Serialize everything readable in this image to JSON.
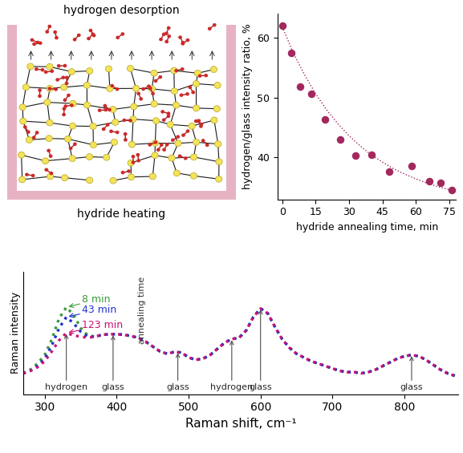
{
  "diagram": {
    "title": "hydrogen desorption",
    "caption": "hydride heating"
  },
  "chart_data": [
    {
      "type": "line",
      "xlabel": "Raman shift, cm⁻¹",
      "ylabel": "Raman intensity",
      "x": [
        270,
        280,
        290,
        300,
        310,
        320,
        330,
        340,
        350,
        360,
        370,
        380,
        390,
        400,
        410,
        420,
        430,
        440,
        450,
        460,
        470,
        480,
        490,
        500,
        510,
        520,
        530,
        540,
        550,
        560,
        570,
        580,
        590,
        600,
        610,
        620,
        630,
        640,
        650,
        660,
        670,
        680,
        690,
        700,
        710,
        720,
        730,
        740,
        750,
        760,
        770,
        780,
        790,
        800,
        810,
        820,
        830,
        840,
        850,
        860,
        870
      ],
      "series": [
        {
          "name": "8 min",
          "color": "#3a9b3a",
          "line_style": "dotted",
          "values": [
            0.07,
            0.1,
            0.15,
            0.22,
            0.35,
            0.52,
            0.61,
            0.55,
            0.44,
            0.38,
            0.37,
            0.385,
            0.39,
            0.39,
            0.385,
            0.375,
            0.36,
            0.33,
            0.29,
            0.25,
            0.23,
            0.245,
            0.24,
            0.2,
            0.18,
            0.19,
            0.22,
            0.27,
            0.32,
            0.35,
            0.36,
            0.42,
            0.53,
            0.6,
            0.56,
            0.45,
            0.35,
            0.28,
            0.23,
            0.2,
            0.17,
            0.15,
            0.13,
            0.11,
            0.09,
            0.08,
            0.08,
            0.07,
            0.08,
            0.1,
            0.13,
            0.16,
            0.19,
            0.21,
            0.22,
            0.21,
            0.18,
            0.14,
            0.1,
            0.07,
            0.05
          ]
        },
        {
          "name": "43 min",
          "color": "#2233cc",
          "line_style": "dotted",
          "values": [
            0.07,
            0.09,
            0.13,
            0.19,
            0.3,
            0.44,
            0.53,
            0.48,
            0.41,
            0.37,
            0.37,
            0.385,
            0.39,
            0.39,
            0.385,
            0.375,
            0.36,
            0.33,
            0.29,
            0.25,
            0.23,
            0.245,
            0.24,
            0.2,
            0.18,
            0.19,
            0.22,
            0.27,
            0.32,
            0.35,
            0.36,
            0.42,
            0.53,
            0.6,
            0.56,
            0.45,
            0.35,
            0.28,
            0.23,
            0.2,
            0.17,
            0.15,
            0.13,
            0.11,
            0.09,
            0.08,
            0.08,
            0.07,
            0.08,
            0.1,
            0.13,
            0.16,
            0.19,
            0.21,
            0.22,
            0.21,
            0.18,
            0.14,
            0.1,
            0.07,
            0.05
          ]
        },
        {
          "name": "123 min",
          "color": "#cc1177",
          "line_style": "dotted",
          "values": [
            0.07,
            0.09,
            0.12,
            0.17,
            0.25,
            0.34,
            0.4,
            0.38,
            0.37,
            0.36,
            0.37,
            0.385,
            0.39,
            0.39,
            0.385,
            0.375,
            0.36,
            0.33,
            0.29,
            0.25,
            0.23,
            0.245,
            0.24,
            0.2,
            0.18,
            0.19,
            0.22,
            0.27,
            0.32,
            0.35,
            0.36,
            0.42,
            0.53,
            0.6,
            0.56,
            0.45,
            0.35,
            0.28,
            0.23,
            0.2,
            0.17,
            0.15,
            0.13,
            0.11,
            0.09,
            0.08,
            0.08,
            0.07,
            0.08,
            0.1,
            0.13,
            0.16,
            0.19,
            0.21,
            0.22,
            0.21,
            0.18,
            0.14,
            0.1,
            0.07,
            0.05
          ]
        }
      ],
      "series_note": "annealing time",
      "annotations": [
        {
          "text": "hydrogen",
          "x": 330
        },
        {
          "text": "glass",
          "x": 395
        },
        {
          "text": "glass",
          "x": 485
        },
        {
          "text": "hydrogen",
          "x": 560
        },
        {
          "text": "glass",
          "x": 600
        },
        {
          "text": "glass",
          "x": 810
        }
      ],
      "xlim": [
        270,
        875
      ],
      "ylim": [
        -0.1,
        0.9
      ],
      "xticks": [
        300,
        400,
        500,
        600,
        700,
        800
      ],
      "yticks": [],
      "tick_labels": "x"
    },
    {
      "type": "scatter",
      "xlabel": "hydride annealing time, min",
      "ylabel": "hydrogen/glass intensity ratio, %",
      "series": [
        {
          "type": "scatter",
          "color": "#a3285e",
          "marker": "o",
          "x": [
            0,
            4,
            8,
            13,
            19,
            26,
            33,
            40,
            48,
            58,
            66,
            71,
            76
          ],
          "values": [
            62,
            57.5,
            51.8,
            50.6,
            46.3,
            43,
            40.3,
            40.5,
            37.6,
            38.6,
            36,
            35.8,
            34.6
          ]
        },
        {
          "type": "line",
          "color": "#a3285e",
          "line_style": "dotted",
          "x": [
            0,
            5,
            10,
            15,
            20,
            25,
            30,
            35,
            40,
            45,
            50,
            55,
            60,
            65,
            70,
            76
          ],
          "values": [
            61.8,
            57.4,
            53.8,
            50.6,
            47.9,
            45.6,
            43.6,
            41.9,
            40.4,
            39.2,
            38.1,
            37.2,
            36.4,
            35.7,
            35.1,
            34.5
          ]
        }
      ],
      "xlim": [
        -2,
        78
      ],
      "ylim": [
        33,
        64
      ],
      "xticks": [
        0,
        15,
        30,
        45,
        60,
        75
      ],
      "yticks": [
        40,
        50,
        60
      ]
    }
  ]
}
